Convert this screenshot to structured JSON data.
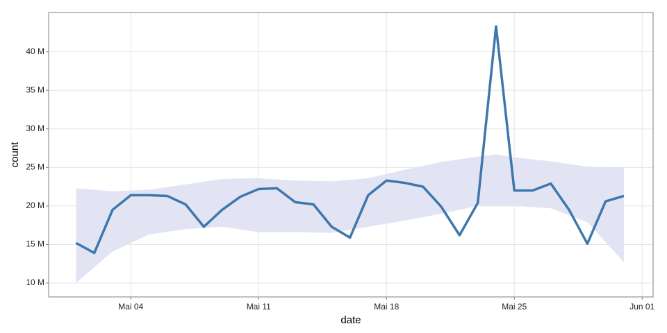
{
  "chart_data": {
    "type": "line",
    "x_label": "date",
    "y_label": "count",
    "x": [
      1,
      2,
      3,
      4,
      5,
      6,
      7,
      8,
      9,
      10,
      11,
      12,
      13,
      14,
      15,
      16,
      17,
      18,
      19,
      20,
      21,
      22,
      23,
      24,
      25,
      26,
      27,
      28,
      29,
      30,
      31
    ],
    "series": [
      {
        "color": "#3d77ae",
        "values": [
          15200000,
          13900000,
          19500000,
          21400000,
          21400000,
          21300000,
          20200000,
          17300000,
          19500000,
          21200000,
          22200000,
          22300000,
          20500000,
          20200000,
          17300000,
          15900000,
          21400000,
          23300000,
          23000000,
          22500000,
          19900000,
          16200000,
          20400000,
          43300000,
          22000000,
          22000000,
          22900000,
          19500000,
          15100000,
          20600000,
          21300000
        ]
      }
    ],
    "band": {
      "color": "#e2e4f3",
      "x": [
        1,
        3,
        5,
        7,
        9,
        11,
        13,
        15,
        17,
        19,
        21,
        23,
        24,
        25,
        27,
        29,
        31
      ],
      "upper": [
        22300000,
        21900000,
        22100000,
        22800000,
        23500000,
        23600000,
        23300000,
        23200000,
        23600000,
        24700000,
        25700000,
        26400000,
        26700000,
        26300000,
        25800000,
        25100000,
        25000000
      ],
      "lower": [
        10000000,
        14100000,
        16300000,
        17000000,
        17300000,
        16600000,
        16600000,
        16500000,
        17300000,
        18100000,
        19000000,
        20000000,
        20000000,
        20000000,
        19700000,
        17900000,
        12700000
      ]
    },
    "xlim": [
      -0.5,
      32.6
    ],
    "xticks": [
      {
        "value": 4,
        "label": "Mai 04"
      },
      {
        "value": 11,
        "label": "Mai 11"
      },
      {
        "value": 18,
        "label": "Mai 18"
      },
      {
        "value": 25,
        "label": "Mai 25"
      },
      {
        "value": 32,
        "label": "Jun 01"
      }
    ],
    "ylim": [
      8200000,
      45100000
    ],
    "yticks": [
      {
        "value": 10000000,
        "label": "10 M"
      },
      {
        "value": 15000000,
        "label": "15 M"
      },
      {
        "value": 20000000,
        "label": "20 M"
      },
      {
        "value": 25000000,
        "label": "25 M"
      },
      {
        "value": 30000000,
        "label": "30 M"
      },
      {
        "value": 35000000,
        "label": "35 M"
      },
      {
        "value": 40000000,
        "label": "40 M"
      }
    ],
    "grid": true
  }
}
